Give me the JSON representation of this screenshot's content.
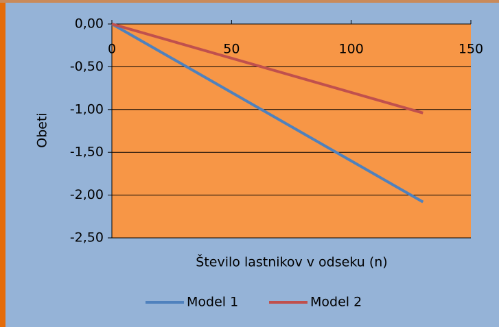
{
  "chart_data": {
    "type": "line",
    "x_label": "Število lastnikov v odseku (n)",
    "y_label": "Obeti",
    "x": [
      0,
      130
    ],
    "series": [
      {
        "name": "Model 1",
        "color": "#4f81bd",
        "values": [
          0,
          -2.08
        ]
      },
      {
        "name": "Model 2",
        "color": "#c0504d",
        "values": [
          0,
          -1.04
        ]
      }
    ],
    "xlim": [
      0,
      150
    ],
    "xticks": [
      0,
      50,
      100,
      150
    ],
    "ylim": [
      -2.5,
      0
    ],
    "yticks": [
      {
        "value": 0,
        "label": "0,00"
      },
      {
        "value": -0.5,
        "label": "-0,50"
      },
      {
        "value": -1,
        "label": "-1,00"
      },
      {
        "value": -1.5,
        "label": "-1,50"
      },
      {
        "value": -2,
        "label": "-2,00"
      },
      {
        "value": -2.5,
        "label": "-2,50"
      }
    ],
    "grid": true,
    "legend": "bottom",
    "plot_color": "#f79646"
  }
}
